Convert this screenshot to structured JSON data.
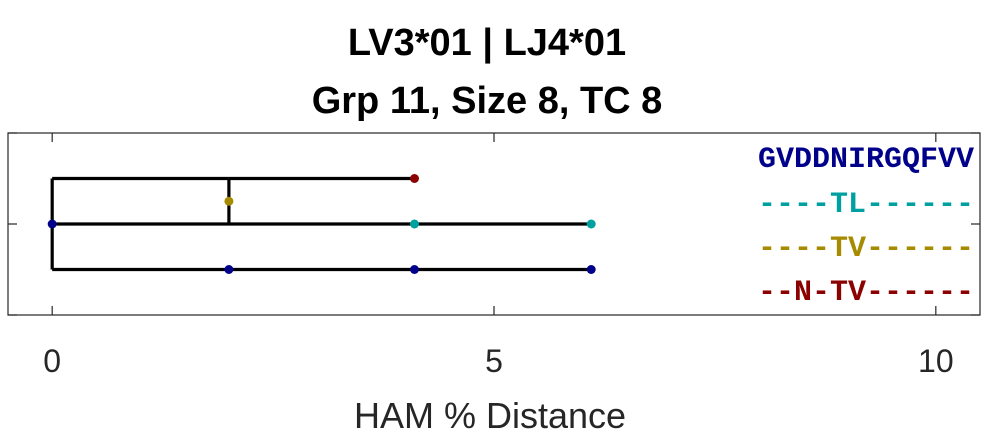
{
  "chart_data": {
    "type": "dendrogram",
    "title": [
      "LV3*01 | LJ4*01",
      "Grp 11, Size 8, TC 8"
    ],
    "xlabel": "HAM % Distance",
    "xlim": [
      -0.5,
      10.5
    ],
    "xticks": [
      0,
      5,
      10
    ],
    "xtick_labels": [
      "0",
      "5",
      "10"
    ],
    "branches": [
      {
        "x1": 0,
        "x2": 2,
        "y": 1
      },
      {
        "x1": 2,
        "x2": 4.1,
        "y": 1
      },
      {
        "x1": 0,
        "x2": 6.1,
        "y": 3
      },
      {
        "x1": 0,
        "x2": 6.1,
        "y": 2
      }
    ],
    "nodes": [
      {
        "x": 0,
        "y": 2,
        "color": "#00008b"
      },
      {
        "x": 2,
        "y": 1.5,
        "color": "#a68a00"
      },
      {
        "x": 4.1,
        "y": 1,
        "color": "#8b0000"
      },
      {
        "x": 4.1,
        "y": 2,
        "color": "#00a0a0"
      },
      {
        "x": 6.1,
        "y": 2,
        "color": "#00a0a0"
      },
      {
        "x": 2,
        "y": 3,
        "color": "#00008b"
      },
      {
        "x": 4.1,
        "y": 3,
        "color": "#00008b"
      },
      {
        "x": 6.1,
        "y": 3,
        "color": "#00008b"
      }
    ],
    "sequences": [
      {
        "text": "GVDDNIRGQFVV",
        "color": "#00008b"
      },
      {
        "text": "----TL------",
        "color": "#00a0a0"
      },
      {
        "text": "----TV------",
        "color": "#a68a00"
      },
      {
        "text": "--N-TV------",
        "color": "#8b0000"
      }
    ]
  }
}
